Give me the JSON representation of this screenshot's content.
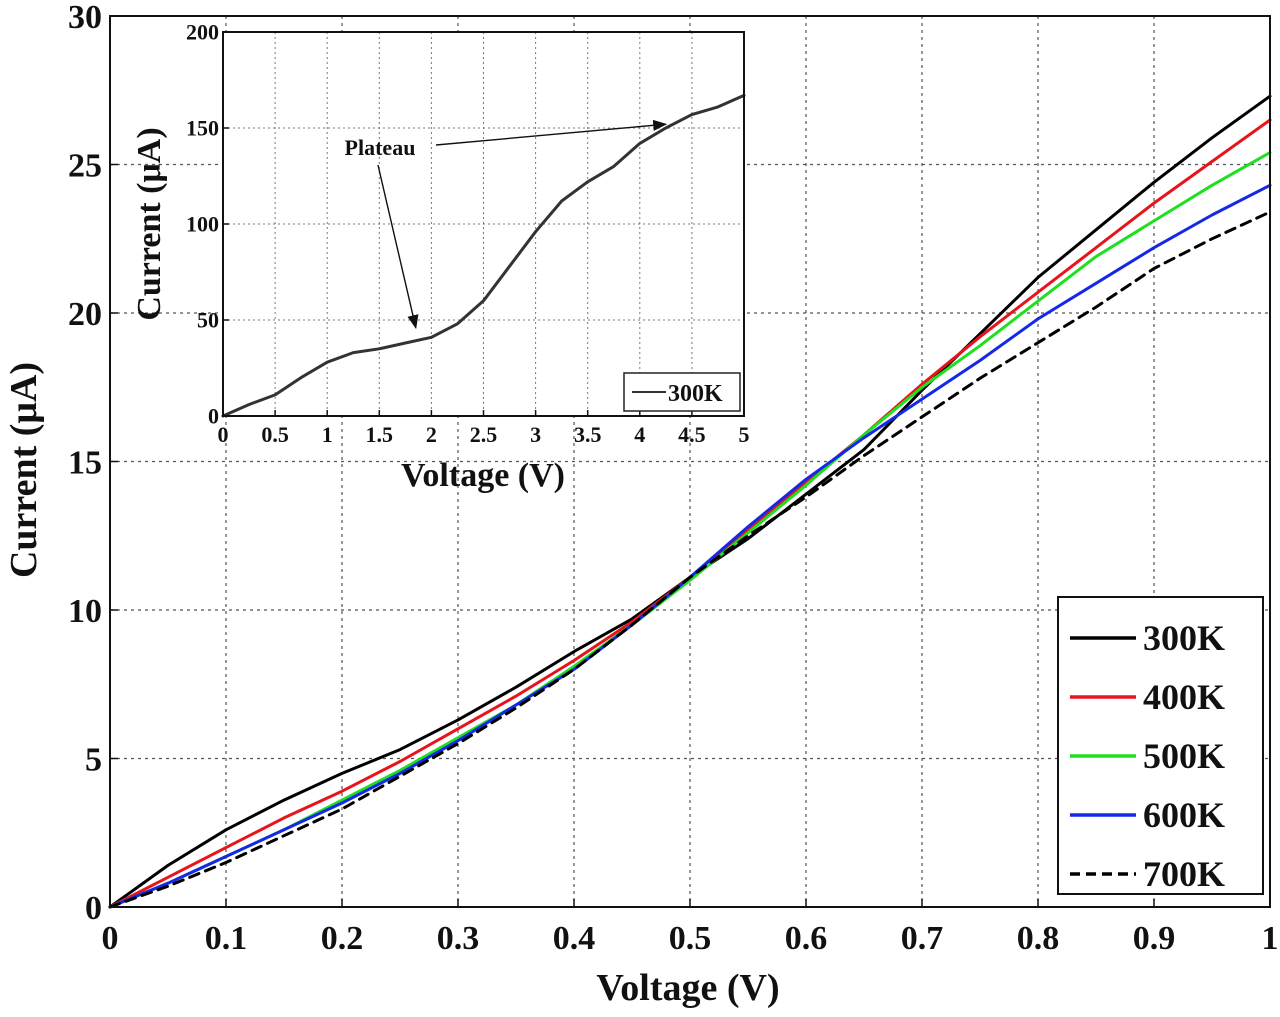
{
  "chart_data": [
    {
      "type": "line",
      "title": "",
      "xlabel": "Voltage (V)",
      "ylabel": "Current (μA)",
      "xlim": [
        0,
        1
      ],
      "ylim": [
        0,
        30
      ],
      "xticks": [
        "0",
        "0.1",
        "0.2",
        "0.3",
        "0.4",
        "0.5",
        "0.6",
        "0.7",
        "0.8",
        "0.9",
        "1"
      ],
      "yticks": [
        "0",
        "5",
        "10",
        "15",
        "20",
        "25",
        "30"
      ],
      "grid": true,
      "legend_position": "bottom-right",
      "x": [
        0,
        0.05,
        0.1,
        0.15,
        0.2,
        0.25,
        0.3,
        0.35,
        0.4,
        0.45,
        0.5,
        0.55,
        0.6,
        0.65,
        0.7,
        0.75,
        0.8,
        0.85,
        0.9,
        0.95,
        1.0
      ],
      "series": [
        {
          "name": "300K",
          "color": "#000000",
          "dash": "solid",
          "values": [
            0,
            1.4,
            2.6,
            3.6,
            4.5,
            5.3,
            6.3,
            7.4,
            8.6,
            9.7,
            11.1,
            12.4,
            13.9,
            15.4,
            17.4,
            19.3,
            21.2,
            22.8,
            24.4,
            25.9,
            27.3
          ]
        },
        {
          "name": "400K",
          "color": "#e8141b",
          "dash": "solid",
          "values": [
            0,
            1.0,
            2.0,
            3.0,
            3.9,
            4.9,
            6.0,
            7.1,
            8.3,
            9.6,
            11.1,
            12.7,
            14.3,
            15.9,
            17.6,
            19.2,
            20.7,
            22.2,
            23.7,
            25.1,
            26.5
          ]
        },
        {
          "name": "500K",
          "color": "#1ee01e",
          "dash": "solid",
          "values": [
            0,
            0.8,
            1.7,
            2.6,
            3.6,
            4.6,
            5.7,
            6.8,
            8.1,
            9.5,
            11.0,
            12.6,
            14.2,
            15.9,
            17.5,
            18.9,
            20.4,
            21.9,
            23.1,
            24.3,
            25.4
          ]
        },
        {
          "name": "600K",
          "color": "#1428e6",
          "dash": "solid",
          "values": [
            0,
            0.8,
            1.7,
            2.6,
            3.5,
            4.5,
            5.6,
            6.8,
            8.0,
            9.5,
            11.1,
            12.8,
            14.4,
            15.8,
            17.1,
            18.4,
            19.8,
            21.0,
            22.2,
            23.3,
            24.3
          ]
        },
        {
          "name": "700K",
          "color": "#000000",
          "dash": "dashed",
          "values": [
            0,
            0.7,
            1.5,
            2.4,
            3.3,
            4.4,
            5.5,
            6.7,
            8.0,
            9.5,
            11.1,
            12.5,
            13.8,
            15.2,
            16.5,
            17.8,
            19.0,
            20.2,
            21.5,
            22.5,
            23.4
          ]
        }
      ]
    },
    {
      "type": "line",
      "title": "",
      "xlabel": "Voltage (V)",
      "ylabel": "Current (μA)",
      "xlim": [
        0,
        5
      ],
      "ylim": [
        0,
        200
      ],
      "xticks": [
        "0",
        "0.5",
        "1",
        "1.5",
        "2",
        "2.5",
        "3",
        "3.5",
        "4",
        "4.5",
        "5"
      ],
      "yticks": [
        "0",
        "50",
        "100",
        "150",
        "200"
      ],
      "grid": true,
      "legend_position": "bottom-right",
      "annotation": "Plateau",
      "annotation_targets": [
        [
          1.85,
          46
        ],
        [
          4.25,
          152
        ]
      ],
      "x": [
        0,
        0.25,
        0.5,
        0.75,
        1.0,
        1.25,
        1.5,
        1.75,
        2.0,
        2.25,
        2.5,
        2.75,
        3.0,
        3.25,
        3.5,
        3.75,
        4.0,
        4.25,
        4.5,
        4.75,
        5.0
      ],
      "series": [
        {
          "name": "300K",
          "color": "#333333",
          "dash": "solid",
          "values": [
            0,
            6,
            11,
            20,
            28,
            33,
            35,
            38,
            41,
            48,
            60,
            78,
            96,
            112,
            122,
            130,
            142,
            150,
            157,
            161,
            167
          ]
        }
      ]
    }
  ]
}
